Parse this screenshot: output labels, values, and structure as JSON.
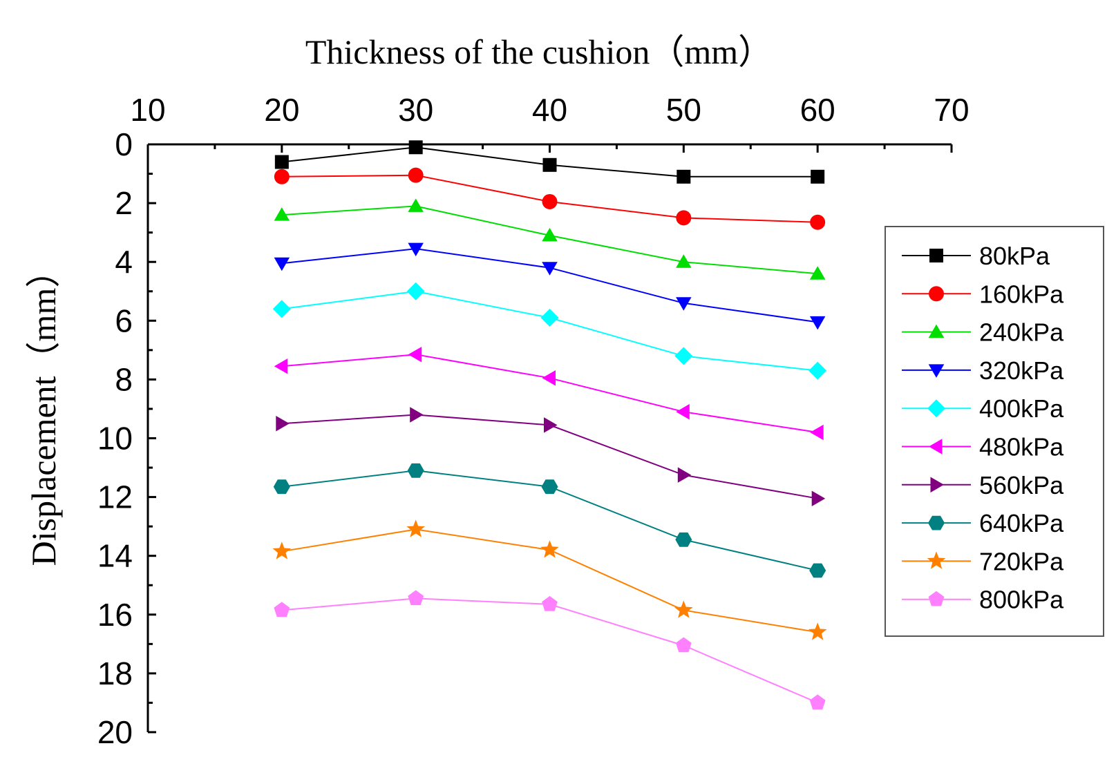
{
  "chart_data": {
    "type": "line",
    "xlabel": "Thickness of the cushion（mm）",
    "ylabel": "Displacement（mm）",
    "xlim": [
      10,
      70
    ],
    "ylim": [
      0,
      20
    ],
    "y_inverted": true,
    "x_axis_position": "top",
    "x_ticks": [
      "10",
      "20",
      "30",
      "40",
      "50",
      "60",
      "70"
    ],
    "y_ticks": [
      "0",
      "2",
      "4",
      "6",
      "8",
      "10",
      "12",
      "14",
      "16",
      "18",
      "20"
    ],
    "legend_position": "right",
    "x": [
      20,
      30,
      40,
      50,
      60
    ],
    "series": [
      {
        "name": "80kPa",
        "color": "#000000",
        "marker": "square",
        "values": [
          0.6,
          0.1,
          0.7,
          1.1,
          1.1
        ]
      },
      {
        "name": "160kPa",
        "color": "#ff0000",
        "marker": "circle",
        "values": [
          1.1,
          1.05,
          1.95,
          2.5,
          2.65
        ]
      },
      {
        "name": "240kPa",
        "color": "#00dd00",
        "marker": "triangle-up",
        "values": [
          2.4,
          2.1,
          3.1,
          4.0,
          4.4
        ]
      },
      {
        "name": "320kPa",
        "color": "#0000ff",
        "marker": "triangle-down",
        "values": [
          4.05,
          3.55,
          4.2,
          5.4,
          6.05
        ]
      },
      {
        "name": "400kPa",
        "color": "#00ffff",
        "marker": "diamond",
        "values": [
          5.6,
          5.0,
          5.9,
          7.2,
          7.7
        ]
      },
      {
        "name": "480kPa",
        "color": "#ff00ff",
        "marker": "triangle-left",
        "values": [
          7.55,
          7.15,
          7.95,
          9.1,
          9.8
        ]
      },
      {
        "name": "560kPa",
        "color": "#800080",
        "marker": "triangle-right",
        "values": [
          9.5,
          9.2,
          9.55,
          11.25,
          12.05
        ]
      },
      {
        "name": "640kPa",
        "color": "#008080",
        "marker": "hexagon",
        "values": [
          11.65,
          11.1,
          11.65,
          13.45,
          14.5
        ]
      },
      {
        "name": "720kPa",
        "color": "#ff8000",
        "marker": "star",
        "values": [
          13.85,
          13.1,
          13.8,
          15.85,
          16.6
        ]
      },
      {
        "name": "800kPa",
        "color": "#ff80ff",
        "marker": "pentagon",
        "values": [
          15.85,
          15.45,
          15.65,
          17.05,
          19.0
        ]
      }
    ]
  }
}
